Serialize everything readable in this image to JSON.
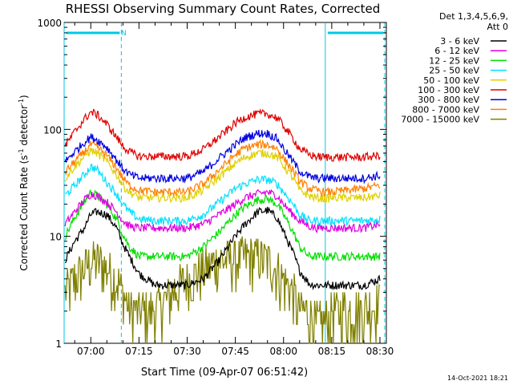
{
  "chart_data": {
    "type": "line",
    "title": "RHESSI Observing Summary Count Rates, Corrected",
    "xlabel": "Start Time (09-Apr-07 06:51:42)",
    "ylabel_main": "Corrected Count Rate (s",
    "ylabel_sup1": "-1",
    "ylabel_mid": " detector",
    "ylabel_sup2": "-1",
    "ylabel_end": ")",
    "yscale": "log",
    "ylim": [
      1,
      1000
    ],
    "xlim": [
      "06:51:42",
      "08:32:00"
    ],
    "x_ticks": [
      "07:00",
      "07:15",
      "07:30",
      "07:45",
      "08:00",
      "08:15",
      "08:30"
    ],
    "y_ticks": [
      "1",
      "10",
      "100",
      "1000"
    ],
    "legend_header": [
      "Det 1,3,4,5,6,9,",
      "Att 0"
    ],
    "legend_position": "right",
    "annotation_n": "N",
    "timestamp": "14-Oct-2021 18:21",
    "night_intervals": [
      [
        "06:51:42",
        "07:09:30"
      ],
      [
        "08:13:00",
        "08:31:30"
      ]
    ],
    "x": [
      "06:52",
      "06:55",
      "06:58",
      "07:00",
      "07:02",
      "07:05",
      "07:08",
      "07:10",
      "07:12",
      "07:15",
      "07:20",
      "07:25",
      "07:30",
      "07:35",
      "07:40",
      "07:45",
      "07:48",
      "07:52",
      "07:55",
      "07:58",
      "08:00",
      "08:03",
      "08:05",
      "08:08",
      "08:10",
      "08:13",
      "08:15",
      "08:20",
      "08:25",
      "08:30"
    ],
    "series": [
      {
        "name": "3 - 6 keV",
        "color": "#000000",
        "values": [
          6,
          9,
          12,
          16,
          17,
          16,
          12,
          8.5,
          6.5,
          4.5,
          3.5,
          3.5,
          3.5,
          4,
          6,
          10,
          13,
          17,
          17.5,
          15,
          11,
          7,
          4.8,
          3.6,
          3.5,
          3.5,
          3.5,
          3.5,
          3.5,
          4
        ]
      },
      {
        "name": "6 - 12 keV",
        "color": "#e000e0",
        "values": [
          13,
          17,
          22,
          25,
          24,
          21,
          17,
          14,
          12.5,
          12,
          12,
          12,
          12,
          13,
          16,
          20,
          23,
          25,
          26,
          24,
          20,
          16,
          14,
          12.5,
          12,
          12,
          12,
          12,
          12,
          13
        ]
      },
      {
        "name": "12 - 25 keV",
        "color": "#00e000",
        "values": [
          10,
          15,
          21,
          26,
          24,
          20,
          14.5,
          10.5,
          8,
          6.5,
          6.5,
          6.5,
          6.5,
          8,
          11,
          16,
          19,
          22,
          22.5,
          20,
          16,
          11,
          8,
          6.5,
          6.5,
          6.5,
          6.5,
          6.5,
          6.5,
          6.5
        ]
      },
      {
        "name": "25 - 50 keV",
        "color": "#00e0ff",
        "values": [
          24,
          30,
          38,
          45,
          42,
          32,
          25,
          20,
          17,
          14.5,
          14,
          14,
          14,
          16,
          21,
          28,
          31,
          34,
          34,
          31,
          26,
          20,
          16,
          14,
          14,
          14,
          14,
          14,
          14,
          14.5
        ]
      },
      {
        "name": "50 - 100 keV",
        "color": "#e0d000",
        "values": [
          35,
          45,
          56,
          64,
          60,
          50,
          38,
          30,
          26,
          23,
          23,
          23,
          23,
          27,
          36,
          48,
          55,
          60,
          60,
          55,
          46,
          35,
          27,
          24,
          23,
          22.5,
          23,
          23,
          23,
          24
        ]
      },
      {
        "name": "100 - 300 keV",
        "color": "#e00000",
        "values": [
          70,
          95,
          125,
          145,
          138,
          112,
          85,
          70,
          62,
          56,
          56,
          56,
          56,
          65,
          85,
          115,
          130,
          140,
          140,
          128,
          108,
          82,
          66,
          58,
          56,
          55,
          55,
          55,
          55,
          57
        ]
      },
      {
        "name": "300 - 800 keV",
        "color": "#0000e0",
        "values": [
          50,
          62,
          76,
          85,
          80,
          68,
          52,
          43,
          38,
          35,
          35,
          35,
          35,
          40,
          54,
          72,
          84,
          92,
          92,
          82,
          66,
          50,
          41,
          36,
          35,
          35,
          35,
          35,
          35,
          37
        ]
      },
      {
        "name": "800 - 7000 keV",
        "color": "#ff8000",
        "values": [
          40,
          50,
          62,
          72,
          68,
          57,
          44,
          35,
          30,
          27,
          26,
          26,
          26,
          31,
          42,
          58,
          67,
          72,
          72,
          66,
          54,
          41,
          33,
          28,
          27,
          26,
          26,
          27,
          28,
          30
        ]
      },
      {
        "name": "7000 - 15000 keV",
        "color": "#808000",
        "values": [
          3,
          4,
          5,
          6,
          6,
          5,
          4,
          3,
          2,
          2,
          2,
          3,
          4,
          5,
          6,
          6,
          6.5,
          6.5,
          6,
          5,
          4,
          3,
          2,
          2,
          1.5,
          1.5,
          2,
          2,
          2,
          2.5
        ]
      }
    ]
  }
}
